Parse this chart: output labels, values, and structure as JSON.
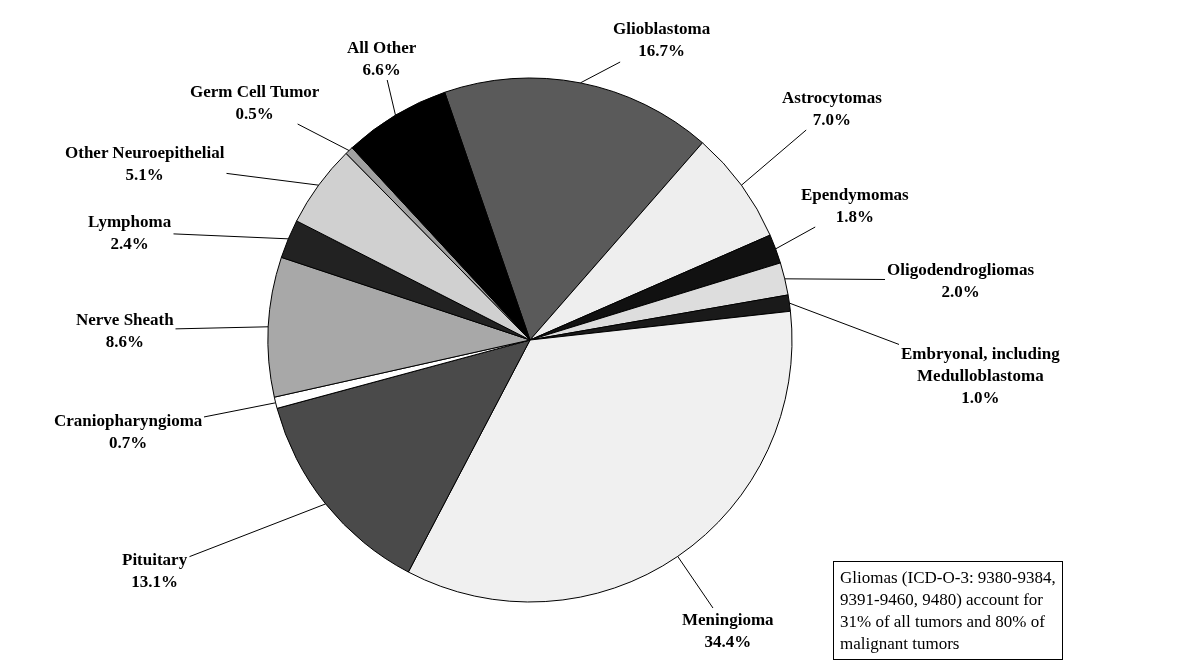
{
  "chart_data": {
    "type": "pie",
    "categories": [
      "Glioblastoma",
      "Astrocytomas",
      "Ependymomas",
      "Oligodendrogliomas",
      "Embryonal, including Medulloblastoma",
      "Meningioma",
      "Pituitary",
      "Craniopharyngioma",
      "Nerve Sheath",
      "Lymphoma",
      "Other Neuroepithelial",
      "Germ Cell Tumor",
      "All Other"
    ],
    "values": [
      16.7,
      7.0,
      1.8,
      2.0,
      1.0,
      34.4,
      13.1,
      0.7,
      8.6,
      2.4,
      5.1,
      0.5,
      6.6
    ],
    "value_labels": [
      "16.7%",
      "7.0%",
      "1.8%",
      "2.0%",
      "1.0%",
      "34.4%",
      "13.1%",
      "0.7%",
      "8.6%",
      "2.4%",
      "5.1%",
      "0.5%",
      "6.6%"
    ],
    "colors": [
      "#5a5a5a",
      "#eeeeee",
      "#111111",
      "#dddddd",
      "#1a1a1a",
      "#f0f0f0",
      "#4a4a4a",
      "#ffffff",
      "#a8a8a8",
      "#222222",
      "#d0d0d0",
      "#a0a0a0",
      "#000000"
    ],
    "legend": false,
    "annotations": [
      "Gliomas (ICD-O-3: 9380-9384, 9391-9460, 9480) account for 31% of all tumors and 80% of malignant tumors"
    ]
  }
}
